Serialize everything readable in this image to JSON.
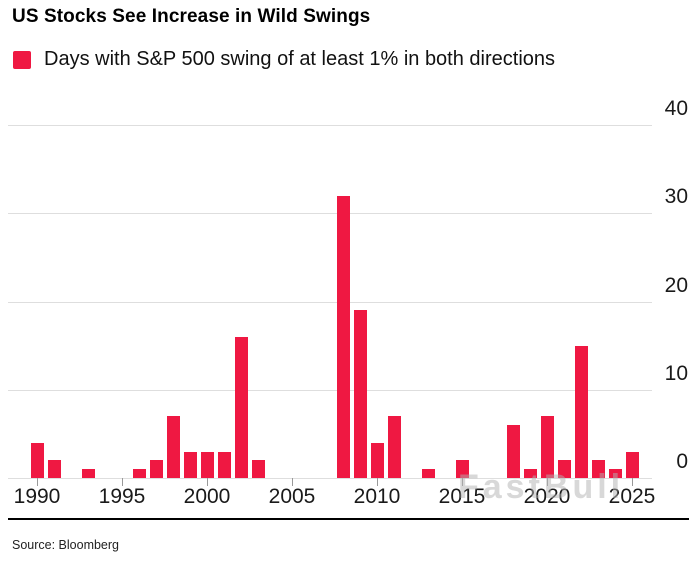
{
  "header": {
    "title": "US Stocks See Increase in Wild Swings",
    "legend_label": "Days with S&P 500 swing of at least 1% in both directions"
  },
  "chart_data": {
    "type": "bar",
    "title": "US Stocks See Increase in Wild Swings",
    "series_label": "Days with S&P 500 swing of at least 1% in both directions",
    "x": [
      1990,
      1991,
      1992,
      1993,
      1994,
      1995,
      1996,
      1997,
      1998,
      1999,
      2000,
      2001,
      2002,
      2003,
      2004,
      2005,
      2006,
      2007,
      2008,
      2009,
      2010,
      2011,
      2012,
      2013,
      2014,
      2015,
      2016,
      2017,
      2018,
      2019,
      2020,
      2021,
      2022,
      2023,
      2024,
      2025
    ],
    "values": [
      4,
      2,
      0,
      1,
      0,
      0,
      1,
      2,
      7,
      3,
      3,
      3,
      16,
      2,
      0,
      0,
      0,
      0,
      32,
      19,
      4,
      7,
      0,
      1,
      0,
      2,
      0,
      0,
      6,
      1,
      7,
      2,
      15,
      2,
      1,
      3
    ],
    "ylim": [
      0,
      40
    ],
    "yticks": [
      0,
      10,
      20,
      30,
      40
    ],
    "xticks": [
      1990,
      1995,
      2000,
      2005,
      2010,
      2015,
      2020,
      2025
    ],
    "grid": true,
    "legend_position": "top-left",
    "y_axis_side": "right",
    "bar_color": "#ef1842"
  },
  "footer": {
    "source": "Source: Bloomberg"
  },
  "watermark": "FastBull",
  "colors": {
    "accent": "#ef1842",
    "gridline": "#dedede",
    "axis_text": "#1a1a1a",
    "bottom_rule": "#000000"
  }
}
